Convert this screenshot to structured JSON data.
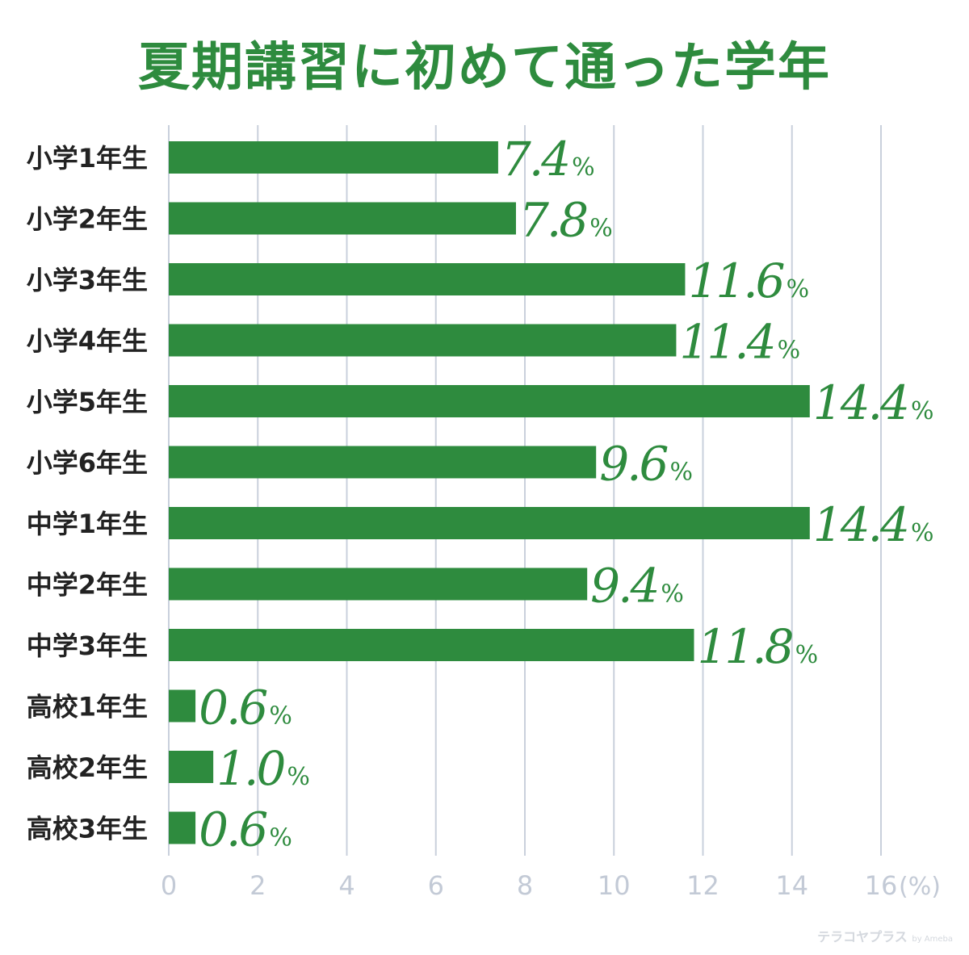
{
  "chart_data": {
    "type": "bar",
    "orientation": "horizontal",
    "title": "夏期講習に初めて通った学年",
    "categories": [
      "小学1年生",
      "小学2年生",
      "小学3年生",
      "小学4年生",
      "小学5年生",
      "小学6年生",
      "中学1年生",
      "中学2年生",
      "中学3年生",
      "高校1年生",
      "高校2年生",
      "高校3年生"
    ],
    "values": [
      7.4,
      7.8,
      11.6,
      11.4,
      14.4,
      9.6,
      14.4,
      9.4,
      11.8,
      0.6,
      1.0,
      0.6
    ],
    "value_labels": [
      "7.4",
      "7.8",
      "11.6",
      "11.4",
      "14.4",
      "9.6",
      "14.4",
      "9.4",
      "11.8",
      "0.6",
      "1.0",
      "0.6"
    ],
    "value_suffix": "%",
    "xlim": [
      0,
      16
    ],
    "xticks": [
      0,
      2,
      4,
      6,
      8,
      10,
      12,
      14,
      16
    ],
    "xtick_labels": [
      "0",
      "2",
      "4",
      "6",
      "8",
      "10",
      "12",
      "14",
      "16"
    ],
    "xunit_label": "(%)",
    "grid": "vertical",
    "legend": "none",
    "colors": {
      "bar": "#2e8b3e",
      "value_label": "#2e8b3e",
      "title": "#2e8b3e",
      "grid": "#c9d0dc",
      "tick_label": "#c3cad6",
      "category_label": "#222222"
    }
  },
  "watermark": {
    "text": "テラコヤプラス",
    "by": "by Ameba"
  }
}
